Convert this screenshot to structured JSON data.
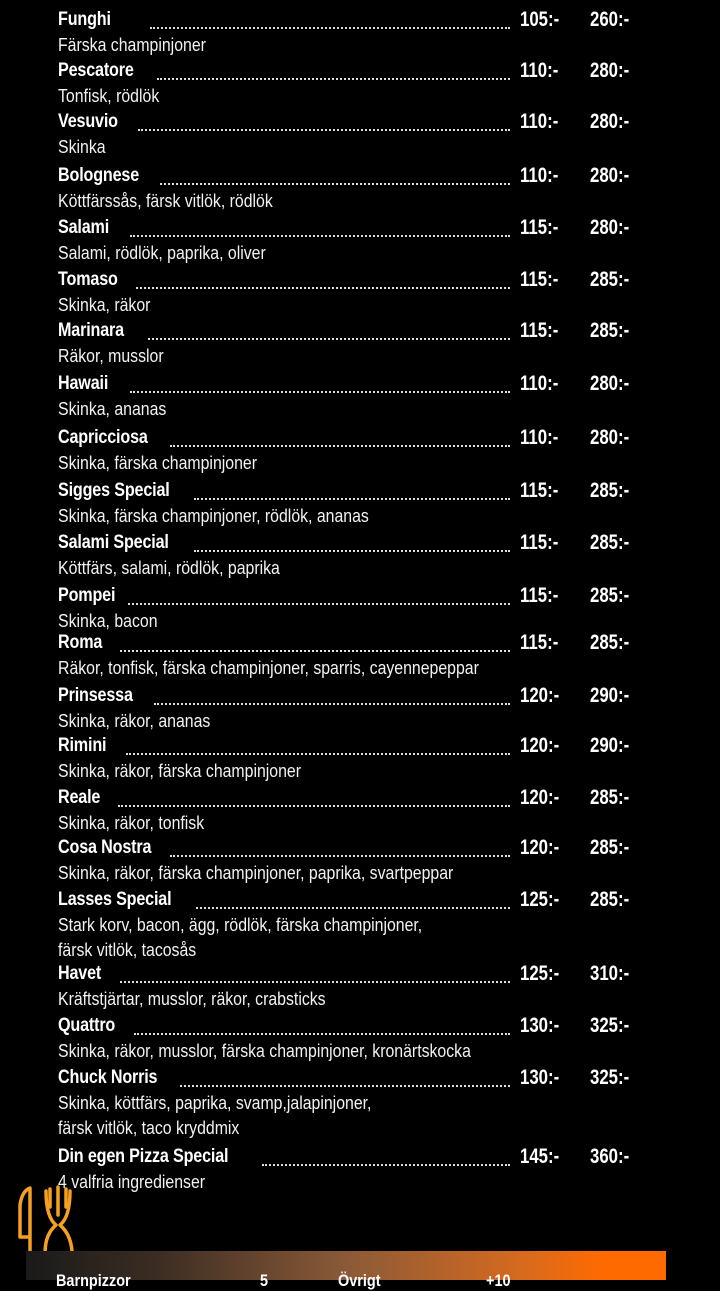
{
  "menu": {
    "items": [
      {
        "name": "Funghi",
        "price_small": "105:-",
        "price_large": "260:-",
        "description": [
          "Färska champinjoner"
        ]
      },
      {
        "name": "Pescatore",
        "price_small": "110:-",
        "price_large": "280:-",
        "description": [
          "Tonfisk, rödlök"
        ]
      },
      {
        "name": "Vesuvio",
        "price_small": "110:-",
        "price_large": "280:-",
        "description": [
          "Skinka"
        ]
      },
      {
        "name": "Bolognese",
        "price_small": "110:-",
        "price_large": "280:-",
        "description": [
          "Köttfärssås, färsk vitlök, rödlök"
        ]
      },
      {
        "name": "Salami",
        "price_small": "115:-",
        "price_large": "280:-",
        "description": [
          "Salami, rödlök, paprika, oliver"
        ]
      },
      {
        "name": "Tomaso",
        "price_small": "115:-",
        "price_large": "285:-",
        "description": [
          "Skinka, räkor"
        ]
      },
      {
        "name": "Marinara",
        "price_small": "115:-",
        "price_large": "285:-",
        "description": [
          "Räkor, musslor"
        ]
      },
      {
        "name": "Hawaii",
        "price_small": "110:-",
        "price_large": "280:-",
        "description": [
          "Skinka, ananas"
        ]
      },
      {
        "name": "Capricciosa",
        "price_small": "110:-",
        "price_large": "280:-",
        "description": [
          "Skinka, färska champinjoner"
        ]
      },
      {
        "name": "Sigges Special",
        "price_small": "115:-",
        "price_large": "285:-",
        "description": [
          "Skinka, färska champinjoner, rödlök, ananas"
        ]
      },
      {
        "name": "Salami Special",
        "price_small": "115:-",
        "price_large": "285:-",
        "description": [
          "Köttfärs, salami, rödlök, paprika"
        ]
      },
      {
        "name": "Pompei",
        "price_small": "115:-",
        "price_large": "285:-",
        "description": [
          "Skinka, bacon"
        ]
      },
      {
        "name": "Roma",
        "price_small": "115:-",
        "price_large": "285:-",
        "description": [
          "Räkor, tonfisk, färska champinjoner, sparris, cayennepeppar"
        ]
      },
      {
        "name": "Prinsessa",
        "price_small": "120:-",
        "price_large": "290:-",
        "description": [
          "Skinka, räkor, ananas"
        ]
      },
      {
        "name": "Rimini",
        "price_small": "120:-",
        "price_large": "290:-",
        "description": [
          "Skinka, räkor, färska champinjoner"
        ]
      },
      {
        "name": "Reale",
        "price_small": "120:-",
        "price_large": "285:-",
        "description": [
          "Skinka, räkor, tonfisk"
        ]
      },
      {
        "name": "Cosa Nostra",
        "price_small": "120:-",
        "price_large": "285:-",
        "description": [
          "Skinka, räkor, färska champinjoner, paprika, svartpeppar"
        ]
      },
      {
        "name": "Lasses Special",
        "price_small": "125:-",
        "price_large": "285:-",
        "description": [
          "Stark korv, bacon, ägg, rödlök, färska champinjoner,",
          "färsk vitlök, tacosås"
        ]
      },
      {
        "name": "Havet",
        "price_small": "125:-",
        "price_large": "310:-",
        "description": [
          "Kräftstjärtar, musslor, räkor, crabsticks"
        ]
      },
      {
        "name": "Quattro",
        "price_small": "130:-",
        "price_large": "325:-",
        "description": [
          "Skinka, räkor, musslor, färska champinjoner, kronärtskocka"
        ]
      },
      {
        "name": "Chuck Norris",
        "price_small": "130:-",
        "price_large": "325:-",
        "description": [
          "Skinka, köttfärs, paprika, svamp,jalapinjoner,",
          "färsk vitlök, taco kryddmix"
        ]
      },
      {
        "name": "Din egen Pizza Special",
        "price_small": "145:-",
        "price_large": "360:-",
        "description": [
          "4 valfria ingredienser"
        ]
      }
    ]
  },
  "footer_band": {
    "left_label": "Barnpizzor",
    "left_value": "5",
    "right_label": "Övrigt",
    "right_value": "+10",
    "gradient_end_color": "#ff6a00"
  },
  "logo": {
    "icon": "fork-and-knife-icon",
    "color": "#f5a020"
  }
}
